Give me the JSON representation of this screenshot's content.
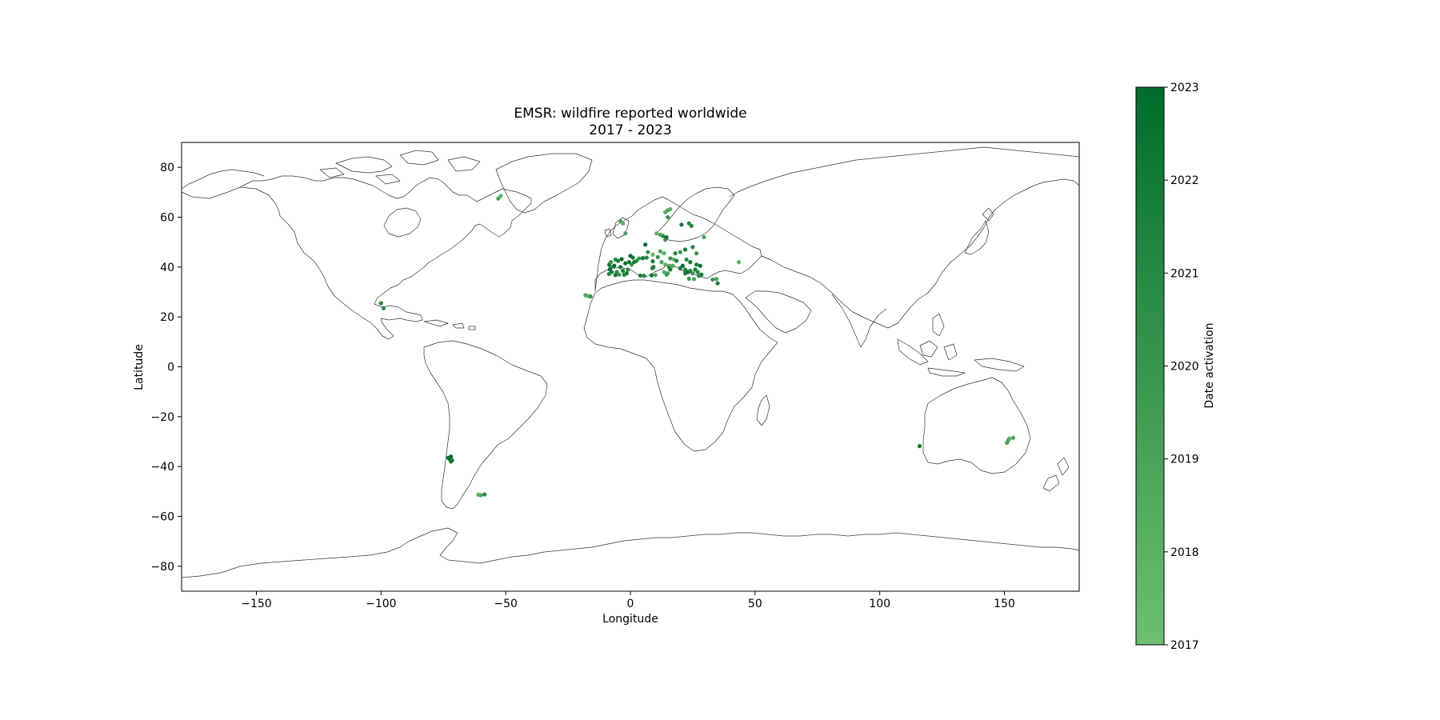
{
  "chart_data": {
    "type": "scatter",
    "title": "EMSR: wildfire reported worldwide",
    "subtitle": "2017 - 2023",
    "xlabel": "Longitude",
    "ylabel": "Latitude",
    "xlim": [
      -180,
      180
    ],
    "ylim": [
      -90,
      90
    ],
    "xticks": [
      -150,
      -100,
      -50,
      0,
      50,
      100,
      150
    ],
    "xtick_labels": [
      "−150",
      "−100",
      "−50",
      "0",
      "50",
      "100",
      "150"
    ],
    "yticks": [
      -80,
      -60,
      -40,
      -20,
      0,
      20,
      40,
      60,
      80
    ],
    "ytick_labels": [
      "−80",
      "−60",
      "−40",
      "−20",
      "0",
      "20",
      "40",
      "60",
      "80"
    ],
    "grid": false,
    "basemap": "world coastlines",
    "colorbar": {
      "label": "Date activation",
      "ticks": [
        2017,
        2018,
        2019,
        2020,
        2021,
        2022,
        2023
      ],
      "tick_labels": [
        "2017",
        "2018",
        "2019",
        "2020",
        "2021",
        "2022",
        "2023"
      ],
      "range": [
        2017,
        2023
      ],
      "color_low": "#6dbf6f",
      "color_high": "#006d2c"
    },
    "points": [
      {
        "lon": -53,
        "lat": 67.5,
        "year": 2019
      },
      {
        "lon": -52,
        "lat": 68.5,
        "year": 2018
      },
      {
        "lon": -100,
        "lat": 25.5,
        "year": 2021
      },
      {
        "lon": -99,
        "lat": 23.5,
        "year": 2021
      },
      {
        "lon": -72,
        "lat": -36,
        "year": 2023
      },
      {
        "lon": -72.5,
        "lat": -37,
        "year": 2023
      },
      {
        "lon": -72,
        "lat": -38,
        "year": 2022
      },
      {
        "lon": -73,
        "lat": -36.5,
        "year": 2023
      },
      {
        "lon": -71.5,
        "lat": -37.5,
        "year": 2022
      },
      {
        "lon": -60,
        "lat": -51.5,
        "year": 2019
      },
      {
        "lon": -61,
        "lat": -51.3,
        "year": 2018
      },
      {
        "lon": -58.5,
        "lat": -51.2,
        "year": 2021
      },
      {
        "lon": -18,
        "lat": 28.7,
        "year": 2019
      },
      {
        "lon": -17,
        "lat": 28.4,
        "year": 2018
      },
      {
        "lon": -16,
        "lat": 28.2,
        "year": 2020
      },
      {
        "lon": -8.5,
        "lat": 41,
        "year": 2022
      },
      {
        "lon": -8,
        "lat": 40,
        "year": 2021
      },
      {
        "lon": -8.2,
        "lat": 39,
        "year": 2023
      },
      {
        "lon": -7.5,
        "lat": 38,
        "year": 2022
      },
      {
        "lon": -8.6,
        "lat": 37.2,
        "year": 2021
      },
      {
        "lon": -7.8,
        "lat": 42,
        "year": 2020
      },
      {
        "lon": -6,
        "lat": 43,
        "year": 2021
      },
      {
        "lon": -5,
        "lat": 42.5,
        "year": 2022
      },
      {
        "lon": -6.5,
        "lat": 40.5,
        "year": 2023
      },
      {
        "lon": -4,
        "lat": 40,
        "year": 2022
      },
      {
        "lon": -5.5,
        "lat": 38,
        "year": 2021
      },
      {
        "lon": -4.5,
        "lat": 37,
        "year": 2020
      },
      {
        "lon": -3,
        "lat": 38.5,
        "year": 2022
      },
      {
        "lon": -2,
        "lat": 41.5,
        "year": 2023
      },
      {
        "lon": -1,
        "lat": 39,
        "year": 2021
      },
      {
        "lon": -0.5,
        "lat": 42,
        "year": 2022
      },
      {
        "lon": 0.5,
        "lat": 41,
        "year": 2020
      },
      {
        "lon": 1.5,
        "lat": 42,
        "year": 2022
      },
      {
        "lon": 2.5,
        "lat": 42.5,
        "year": 2021
      },
      {
        "lon": -1.5,
        "lat": 37.5,
        "year": 2022
      },
      {
        "lon": -6,
        "lat": 36.8,
        "year": 2022
      },
      {
        "lon": -3.5,
        "lat": 43.2,
        "year": 2023
      },
      {
        "lon": -2.5,
        "lat": 36.9,
        "year": 2021
      },
      {
        "lon": 0,
        "lat": 44.5,
        "year": 2023
      },
      {
        "lon": 1,
        "lat": 43.8,
        "year": 2022
      },
      {
        "lon": 3.5,
        "lat": 43.5,
        "year": 2020
      },
      {
        "lon": 5,
        "lat": 43.6,
        "year": 2022
      },
      {
        "lon": 6.5,
        "lat": 43.8,
        "year": 2021
      },
      {
        "lon": 9,
        "lat": 42.3,
        "year": 2022
      },
      {
        "lon": 9.2,
        "lat": 40,
        "year": 2023
      },
      {
        "lon": 8.8,
        "lat": 39.5,
        "year": 2021
      },
      {
        "lon": 4,
        "lat": 36.6,
        "year": 2022
      },
      {
        "lon": 5.5,
        "lat": 36.5,
        "year": 2021
      },
      {
        "lon": 8.5,
        "lat": 36.7,
        "year": 2022
      },
      {
        "lon": 10,
        "lat": 36.8,
        "year": 2019
      },
      {
        "lon": 9,
        "lat": 45,
        "year": 2018
      },
      {
        "lon": 11,
        "lat": 44,
        "year": 2020
      },
      {
        "lon": 12.5,
        "lat": 42,
        "year": 2019
      },
      {
        "lon": 14,
        "lat": 41,
        "year": 2018
      },
      {
        "lon": 15.5,
        "lat": 40,
        "year": 2021
      },
      {
        "lon": 16,
        "lat": 39,
        "year": 2022
      },
      {
        "lon": 15,
        "lat": 37.5,
        "year": 2019
      },
      {
        "lon": 13.5,
        "lat": 38,
        "year": 2018
      },
      {
        "lon": 14.5,
        "lat": 37,
        "year": 2020
      },
      {
        "lon": 17,
        "lat": 40.5,
        "year": 2019
      },
      {
        "lon": 16,
        "lat": 43.5,
        "year": 2020
      },
      {
        "lon": 17.5,
        "lat": 43,
        "year": 2018
      },
      {
        "lon": 18.5,
        "lat": 42.5,
        "year": 2021
      },
      {
        "lon": 13.5,
        "lat": 45.5,
        "year": 2018
      },
      {
        "lon": 12,
        "lat": 46.3,
        "year": 2019
      },
      {
        "lon": 7,
        "lat": 46,
        "year": 2020
      },
      {
        "lon": 6,
        "lat": 49,
        "year": 2023
      },
      {
        "lon": 14,
        "lat": 51,
        "year": 2020
      },
      {
        "lon": 13,
        "lat": 52.5,
        "year": 2021
      },
      {
        "lon": 14.5,
        "lat": 52,
        "year": 2022
      },
      {
        "lon": 12,
        "lat": 53,
        "year": 2019
      },
      {
        "lon": 10.5,
        "lat": 53.5,
        "year": 2018
      },
      {
        "lon": -2,
        "lat": 53.5,
        "year": 2019
      },
      {
        "lon": -3,
        "lat": 57.5,
        "year": 2018
      },
      {
        "lon": -4,
        "lat": 58.5,
        "year": 2019
      },
      {
        "lon": 14,
        "lat": 62,
        "year": 2018
      },
      {
        "lon": 15,
        "lat": 62.8,
        "year": 2019
      },
      {
        "lon": 16,
        "lat": 63.2,
        "year": 2018
      },
      {
        "lon": 15,
        "lat": 60,
        "year": 2020
      },
      {
        "lon": 20.5,
        "lat": 57,
        "year": 2022
      },
      {
        "lon": 23.5,
        "lat": 57.5,
        "year": 2021
      },
      {
        "lon": 24.5,
        "lat": 56.5,
        "year": 2021
      },
      {
        "lon": 29.5,
        "lat": 52,
        "year": 2019
      },
      {
        "lon": 18,
        "lat": 45.5,
        "year": 2021
      },
      {
        "lon": 20,
        "lat": 46,
        "year": 2020
      },
      {
        "lon": 22,
        "lat": 47,
        "year": 2022
      },
      {
        "lon": 25,
        "lat": 48,
        "year": 2021
      },
      {
        "lon": 26.5,
        "lat": 45.5,
        "year": 2020
      },
      {
        "lon": 22.5,
        "lat": 43,
        "year": 2021
      },
      {
        "lon": 24,
        "lat": 42,
        "year": 2022
      },
      {
        "lon": 21,
        "lat": 40.5,
        "year": 2023
      },
      {
        "lon": 20,
        "lat": 39.5,
        "year": 2022
      },
      {
        "lon": 22,
        "lat": 39,
        "year": 2021
      },
      {
        "lon": 23,
        "lat": 38,
        "year": 2023
      },
      {
        "lon": 22,
        "lat": 37.5,
        "year": 2022
      },
      {
        "lon": 24,
        "lat": 38.5,
        "year": 2021
      },
      {
        "lon": 25,
        "lat": 37.5,
        "year": 2020
      },
      {
        "lon": 26,
        "lat": 39,
        "year": 2022
      },
      {
        "lon": 27,
        "lat": 38,
        "year": 2021
      },
      {
        "lon": 26.5,
        "lat": 41,
        "year": 2022
      },
      {
        "lon": 28,
        "lat": 40.5,
        "year": 2023
      },
      {
        "lon": 28.5,
        "lat": 37,
        "year": 2022
      },
      {
        "lon": 27.5,
        "lat": 36.5,
        "year": 2021
      },
      {
        "lon": 23.5,
        "lat": 35.3,
        "year": 2020
      },
      {
        "lon": 25.5,
        "lat": 35.2,
        "year": 2019
      },
      {
        "lon": 33,
        "lat": 35,
        "year": 2020
      },
      {
        "lon": 34.5,
        "lat": 35.2,
        "year": 2019
      },
      {
        "lon": 35,
        "lat": 33.5,
        "year": 2022
      },
      {
        "lon": 43.5,
        "lat": 42,
        "year": 2018
      },
      {
        "lon": 116,
        "lat": -31.8,
        "year": 2022
      },
      {
        "lon": 151.5,
        "lat": -29.5,
        "year": 2019
      },
      {
        "lon": 152,
        "lat": -28.8,
        "year": 2018
      },
      {
        "lon": 151,
        "lat": -30.5,
        "year": 2019
      },
      {
        "lon": 153.5,
        "lat": -28.5,
        "year": 2019
      }
    ]
  }
}
